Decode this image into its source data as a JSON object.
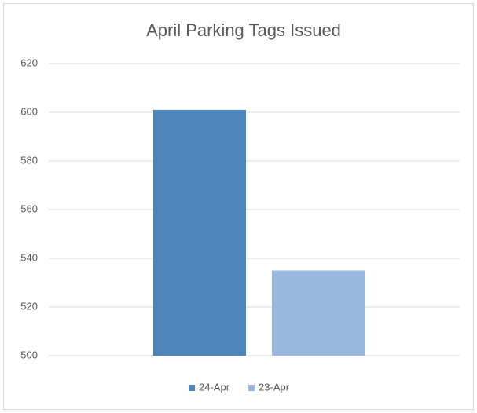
{
  "chart_data": {
    "type": "bar",
    "title": "April Parking Tags Issued",
    "categories": [
      null
    ],
    "series": [
      {
        "name": "24-Apr",
        "color": "#4f86b9",
        "values": [
          601
        ]
      },
      {
        "name": "23-Apr",
        "color": "#98b9dd",
        "values": [
          535
        ]
      }
    ],
    "ylim": [
      500,
      620
    ],
    "yticks": [
      500,
      520,
      540,
      560,
      580,
      600,
      620
    ],
    "grid": true,
    "legend": "bottom"
  }
}
